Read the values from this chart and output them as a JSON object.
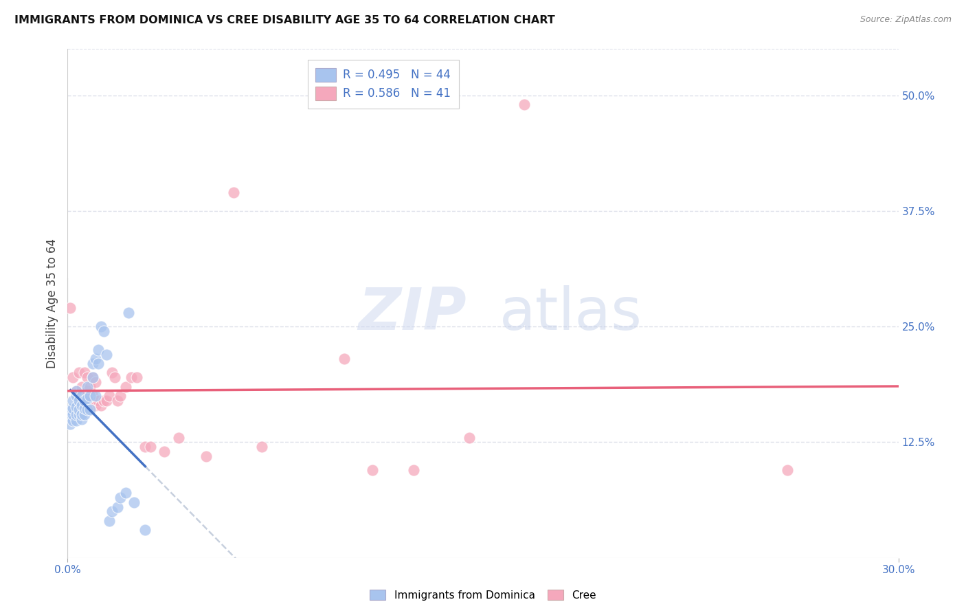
{
  "title": "IMMIGRANTS FROM DOMINICA VS CREE DISABILITY AGE 35 TO 64 CORRELATION CHART",
  "source": "Source: ZipAtlas.com",
  "ylabel": "Disability Age 35 to 64",
  "xlim": [
    0.0,
    0.3
  ],
  "ylim": [
    0.0,
    0.55
  ],
  "x_ticks": [
    0.0,
    0.3
  ],
  "x_tick_labels": [
    "0.0%",
    "30.0%"
  ],
  "y_ticks": [
    0.125,
    0.25,
    0.375,
    0.5
  ],
  "y_tick_labels": [
    "12.5%",
    "25.0%",
    "37.5%",
    "50.0%"
  ],
  "watermark_zip": "ZIP",
  "watermark_atlas": "atlas",
  "legend_r1": "R = 0.495",
  "legend_n1": "N = 44",
  "legend_r2": "R = 0.586",
  "legend_n2": "N = 41",
  "blue_color": "#a8c4ee",
  "pink_color": "#f5a8bc",
  "trendline_blue_color": "#4472c4",
  "trendline_pink_color": "#e8607a",
  "trendline_gray_color": "#b0bcd0",
  "background_color": "#ffffff",
  "grid_color": "#dde0ea",
  "blue_scatter_x": [
    0.001,
    0.001,
    0.001,
    0.002,
    0.002,
    0.002,
    0.002,
    0.003,
    0.003,
    0.003,
    0.003,
    0.003,
    0.004,
    0.004,
    0.004,
    0.005,
    0.005,
    0.005,
    0.005,
    0.006,
    0.006,
    0.006,
    0.007,
    0.007,
    0.007,
    0.008,
    0.008,
    0.009,
    0.009,
    0.01,
    0.01,
    0.011,
    0.011,
    0.012,
    0.013,
    0.014,
    0.015,
    0.016,
    0.018,
    0.019,
    0.021,
    0.022,
    0.024,
    0.028
  ],
  "blue_scatter_y": [
    0.155,
    0.16,
    0.145,
    0.148,
    0.155,
    0.162,
    0.17,
    0.148,
    0.155,
    0.163,
    0.175,
    0.18,
    0.155,
    0.16,
    0.17,
    0.15,
    0.155,
    0.165,
    0.175,
    0.155,
    0.162,
    0.17,
    0.16,
    0.172,
    0.185,
    0.16,
    0.175,
    0.195,
    0.21,
    0.175,
    0.215,
    0.21,
    0.225,
    0.25,
    0.245,
    0.22,
    0.04,
    0.05,
    0.055,
    0.065,
    0.07,
    0.265,
    0.06,
    0.03
  ],
  "pink_scatter_x": [
    0.001,
    0.002,
    0.003,
    0.004,
    0.005,
    0.005,
    0.006,
    0.006,
    0.007,
    0.007,
    0.008,
    0.008,
    0.009,
    0.009,
    0.01,
    0.01,
    0.011,
    0.012,
    0.013,
    0.014,
    0.015,
    0.016,
    0.017,
    0.018,
    0.019,
    0.021,
    0.023,
    0.025,
    0.028,
    0.03,
    0.035,
    0.04,
    0.05,
    0.06,
    0.07,
    0.1,
    0.11,
    0.125,
    0.145,
    0.165,
    0.26
  ],
  "pink_scatter_y": [
    0.27,
    0.195,
    0.18,
    0.2,
    0.17,
    0.185,
    0.175,
    0.2,
    0.18,
    0.195,
    0.17,
    0.185,
    0.175,
    0.195,
    0.165,
    0.19,
    0.17,
    0.165,
    0.17,
    0.17,
    0.175,
    0.2,
    0.195,
    0.17,
    0.175,
    0.185,
    0.195,
    0.195,
    0.12,
    0.12,
    0.115,
    0.13,
    0.11,
    0.395,
    0.12,
    0.215,
    0.095,
    0.095,
    0.13,
    0.49,
    0.095
  ],
  "legend_box_color": "#f0f2f8",
  "tick_color": "#4472c4"
}
